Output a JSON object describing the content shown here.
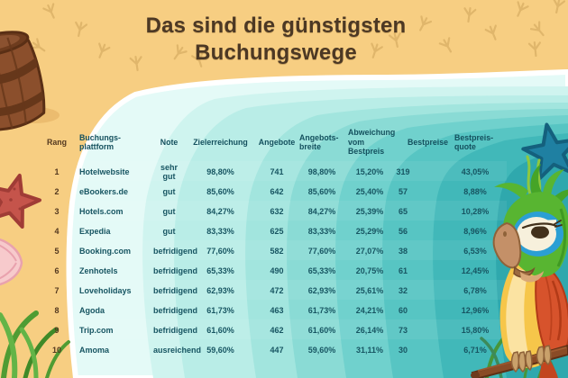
{
  "title": "Das sind die günstigsten\nBuchungswege",
  "chart_data": {
    "type": "table",
    "title": "Das sind die günstigsten Buchungswege",
    "columns": [
      "Rang",
      "Buchungs-\nplattform",
      "Note",
      "Zielerreichung",
      "Angebote",
      "Angebots-\nbreite",
      "Abweichung\nvom\nBestpreis",
      "Bestpreise",
      "Bestpreis-\nquote"
    ],
    "rows": [
      [
        "1",
        "Hotelwebsite",
        "sehr gut",
        "98,80%",
        "741",
        "98,80%",
        "15,20%",
        "319",
        "43,05%"
      ],
      [
        "2",
        "eBookers.de",
        "gut",
        "85,60%",
        "642",
        "85,60%",
        "25,40%",
        "57",
        "8,88%"
      ],
      [
        "3",
        "Hotels.com",
        "gut",
        "84,27%",
        "632",
        "84,27%",
        "25,39%",
        "65",
        "10,28%"
      ],
      [
        "4",
        "Expedia",
        "gut",
        "83,33%",
        "625",
        "83,33%",
        "25,29%",
        "56",
        "8,96%"
      ],
      [
        "5",
        "Booking.com",
        "befridigend",
        "77,60%",
        "582",
        "77,60%",
        "27,07%",
        "38",
        "6,53%"
      ],
      [
        "6",
        "Zenhotels",
        "befridigend",
        "65,33%",
        "490",
        "65,33%",
        "20,75%",
        "61",
        "12,45%"
      ],
      [
        "7",
        "Loveholidays",
        "befridigend",
        "62,93%",
        "472",
        "62,93%",
        "25,61%",
        "32",
        "6,78%"
      ],
      [
        "8",
        "Agoda",
        "befridigend",
        "61,73%",
        "463",
        "61,73%",
        "24,21%",
        "60",
        "12,96%"
      ],
      [
        "9",
        "Trip.com",
        "befridigend",
        "61,60%",
        "462",
        "61,60%",
        "26,14%",
        "73",
        "15,80%"
      ],
      [
        "10",
        "Amoma",
        "ausreichend",
        "59,60%",
        "447",
        "59,60%",
        "31,11%",
        "30",
        "6,71%"
      ]
    ]
  },
  "colors": {
    "sand": "#F7CE82",
    "footprint": "#DCB267",
    "title_text": "#4C3824",
    "foam": "#FFFFFF",
    "water_bands": [
      "#E4FAF7",
      "#CFF4EF",
      "#B9EDE7",
      "#A2E5DE",
      "#8ADBD5",
      "#70D1CD",
      "#57C5C3",
      "#41B8B9",
      "#2FA8AD"
    ],
    "header_text": "#14505E",
    "cell_text": "#175562",
    "rank_text": "#53381F"
  },
  "decorations": {
    "icons": [
      "barrel-icon",
      "bird-footprint-icon",
      "red-starfish-icon",
      "seashell-icon",
      "beach-grass-icon",
      "blue-starfish-icon",
      "seaweed-icon",
      "parrot-icon",
      "branch-icon"
    ]
  }
}
